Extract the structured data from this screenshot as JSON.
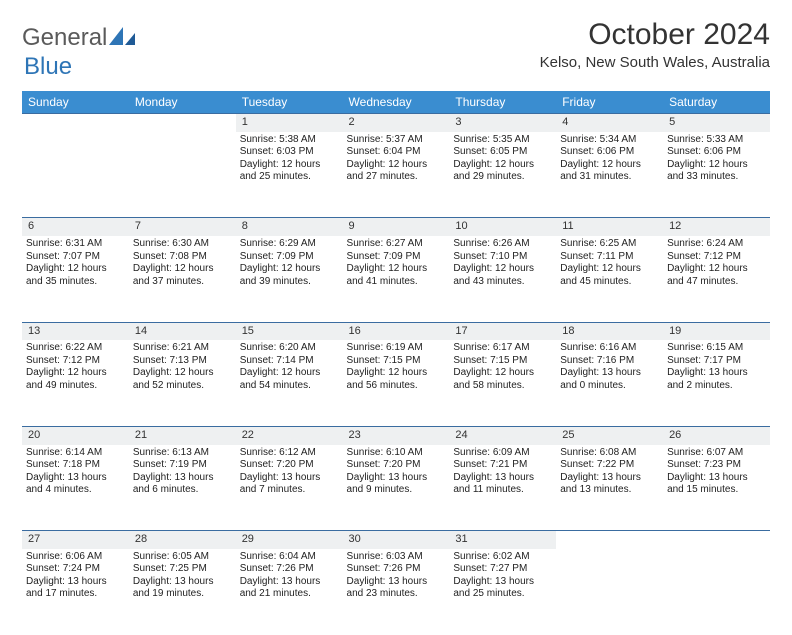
{
  "logo": {
    "part1": "General",
    "part2": "Blue"
  },
  "title": "October 2024",
  "location": "Kelso, New South Wales, Australia",
  "colors": {
    "header_bg": "#3a8dd0",
    "header_fg": "#ffffff",
    "daynum_bg": "#eef0f1",
    "row_divider": "#3a6ca0",
    "logo_accent": "#2e75b6",
    "logo_gray": "#5a5a5a",
    "text": "#222222"
  },
  "weekdays": [
    "Sunday",
    "Monday",
    "Tuesday",
    "Wednesday",
    "Thursday",
    "Friday",
    "Saturday"
  ],
  "weeks": [
    {
      "nums": [
        "",
        "",
        "1",
        "2",
        "3",
        "4",
        "5"
      ],
      "cells": [
        null,
        null,
        {
          "sunrise": "Sunrise: 5:38 AM",
          "sunset": "Sunset: 6:03 PM",
          "d1": "Daylight: 12 hours",
          "d2": "and 25 minutes."
        },
        {
          "sunrise": "Sunrise: 5:37 AM",
          "sunset": "Sunset: 6:04 PM",
          "d1": "Daylight: 12 hours",
          "d2": "and 27 minutes."
        },
        {
          "sunrise": "Sunrise: 5:35 AM",
          "sunset": "Sunset: 6:05 PM",
          "d1": "Daylight: 12 hours",
          "d2": "and 29 minutes."
        },
        {
          "sunrise": "Sunrise: 5:34 AM",
          "sunset": "Sunset: 6:06 PM",
          "d1": "Daylight: 12 hours",
          "d2": "and 31 minutes."
        },
        {
          "sunrise": "Sunrise: 5:33 AM",
          "sunset": "Sunset: 6:06 PM",
          "d1": "Daylight: 12 hours",
          "d2": "and 33 minutes."
        }
      ]
    },
    {
      "nums": [
        "6",
        "7",
        "8",
        "9",
        "10",
        "11",
        "12"
      ],
      "cells": [
        {
          "sunrise": "Sunrise: 6:31 AM",
          "sunset": "Sunset: 7:07 PM",
          "d1": "Daylight: 12 hours",
          "d2": "and 35 minutes."
        },
        {
          "sunrise": "Sunrise: 6:30 AM",
          "sunset": "Sunset: 7:08 PM",
          "d1": "Daylight: 12 hours",
          "d2": "and 37 minutes."
        },
        {
          "sunrise": "Sunrise: 6:29 AM",
          "sunset": "Sunset: 7:09 PM",
          "d1": "Daylight: 12 hours",
          "d2": "and 39 minutes."
        },
        {
          "sunrise": "Sunrise: 6:27 AM",
          "sunset": "Sunset: 7:09 PM",
          "d1": "Daylight: 12 hours",
          "d2": "and 41 minutes."
        },
        {
          "sunrise": "Sunrise: 6:26 AM",
          "sunset": "Sunset: 7:10 PM",
          "d1": "Daylight: 12 hours",
          "d2": "and 43 minutes."
        },
        {
          "sunrise": "Sunrise: 6:25 AM",
          "sunset": "Sunset: 7:11 PM",
          "d1": "Daylight: 12 hours",
          "d2": "and 45 minutes."
        },
        {
          "sunrise": "Sunrise: 6:24 AM",
          "sunset": "Sunset: 7:12 PM",
          "d1": "Daylight: 12 hours",
          "d2": "and 47 minutes."
        }
      ]
    },
    {
      "nums": [
        "13",
        "14",
        "15",
        "16",
        "17",
        "18",
        "19"
      ],
      "cells": [
        {
          "sunrise": "Sunrise: 6:22 AM",
          "sunset": "Sunset: 7:12 PM",
          "d1": "Daylight: 12 hours",
          "d2": "and 49 minutes."
        },
        {
          "sunrise": "Sunrise: 6:21 AM",
          "sunset": "Sunset: 7:13 PM",
          "d1": "Daylight: 12 hours",
          "d2": "and 52 minutes."
        },
        {
          "sunrise": "Sunrise: 6:20 AM",
          "sunset": "Sunset: 7:14 PM",
          "d1": "Daylight: 12 hours",
          "d2": "and 54 minutes."
        },
        {
          "sunrise": "Sunrise: 6:19 AM",
          "sunset": "Sunset: 7:15 PM",
          "d1": "Daylight: 12 hours",
          "d2": "and 56 minutes."
        },
        {
          "sunrise": "Sunrise: 6:17 AM",
          "sunset": "Sunset: 7:15 PM",
          "d1": "Daylight: 12 hours",
          "d2": "and 58 minutes."
        },
        {
          "sunrise": "Sunrise: 6:16 AM",
          "sunset": "Sunset: 7:16 PM",
          "d1": "Daylight: 13 hours",
          "d2": "and 0 minutes."
        },
        {
          "sunrise": "Sunrise: 6:15 AM",
          "sunset": "Sunset: 7:17 PM",
          "d1": "Daylight: 13 hours",
          "d2": "and 2 minutes."
        }
      ]
    },
    {
      "nums": [
        "20",
        "21",
        "22",
        "23",
        "24",
        "25",
        "26"
      ],
      "cells": [
        {
          "sunrise": "Sunrise: 6:14 AM",
          "sunset": "Sunset: 7:18 PM",
          "d1": "Daylight: 13 hours",
          "d2": "and 4 minutes."
        },
        {
          "sunrise": "Sunrise: 6:13 AM",
          "sunset": "Sunset: 7:19 PM",
          "d1": "Daylight: 13 hours",
          "d2": "and 6 minutes."
        },
        {
          "sunrise": "Sunrise: 6:12 AM",
          "sunset": "Sunset: 7:20 PM",
          "d1": "Daylight: 13 hours",
          "d2": "and 7 minutes."
        },
        {
          "sunrise": "Sunrise: 6:10 AM",
          "sunset": "Sunset: 7:20 PM",
          "d1": "Daylight: 13 hours",
          "d2": "and 9 minutes."
        },
        {
          "sunrise": "Sunrise: 6:09 AM",
          "sunset": "Sunset: 7:21 PM",
          "d1": "Daylight: 13 hours",
          "d2": "and 11 minutes."
        },
        {
          "sunrise": "Sunrise: 6:08 AM",
          "sunset": "Sunset: 7:22 PM",
          "d1": "Daylight: 13 hours",
          "d2": "and 13 minutes."
        },
        {
          "sunrise": "Sunrise: 6:07 AM",
          "sunset": "Sunset: 7:23 PM",
          "d1": "Daylight: 13 hours",
          "d2": "and 15 minutes."
        }
      ]
    },
    {
      "nums": [
        "27",
        "28",
        "29",
        "30",
        "31",
        "",
        ""
      ],
      "cells": [
        {
          "sunrise": "Sunrise: 6:06 AM",
          "sunset": "Sunset: 7:24 PM",
          "d1": "Daylight: 13 hours",
          "d2": "and 17 minutes."
        },
        {
          "sunrise": "Sunrise: 6:05 AM",
          "sunset": "Sunset: 7:25 PM",
          "d1": "Daylight: 13 hours",
          "d2": "and 19 minutes."
        },
        {
          "sunrise": "Sunrise: 6:04 AM",
          "sunset": "Sunset: 7:26 PM",
          "d1": "Daylight: 13 hours",
          "d2": "and 21 minutes."
        },
        {
          "sunrise": "Sunrise: 6:03 AM",
          "sunset": "Sunset: 7:26 PM",
          "d1": "Daylight: 13 hours",
          "d2": "and 23 minutes."
        },
        {
          "sunrise": "Sunrise: 6:02 AM",
          "sunset": "Sunset: 7:27 PM",
          "d1": "Daylight: 13 hours",
          "d2": "and 25 minutes."
        },
        null,
        null
      ]
    }
  ]
}
